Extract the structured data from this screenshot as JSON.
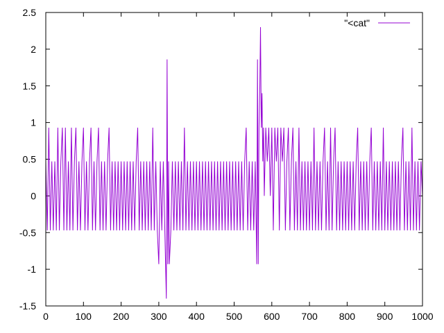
{
  "chart_data": {
    "type": "line",
    "title": "",
    "xlabel": "",
    "ylabel": "",
    "xlim": [
      0,
      1000
    ],
    "ylim": [
      -1.5,
      2.5
    ],
    "xticks": [
      "0",
      "100",
      "200",
      "300",
      "400",
      "500",
      "600",
      "700",
      "800",
      "900",
      "1000"
    ],
    "yticks": [
      "2.5",
      "2",
      "1.5",
      "1",
      "0.5",
      "0",
      "-0.5",
      "-1",
      "-1.5"
    ],
    "grid": false,
    "legend_position": "top-right",
    "series": [
      {
        "name": "\"<cat\"",
        "color": "#9400d3",
        "x": [
          0,
          4,
          8,
          12,
          16,
          20,
          24,
          28,
          32,
          36,
          40,
          44,
          48,
          52,
          56,
          60,
          64,
          68,
          72,
          76,
          80,
          84,
          88,
          92,
          96,
          100,
          104,
          108,
          112,
          116,
          120,
          124,
          128,
          132,
          136,
          140,
          144,
          148,
          152,
          156,
          160,
          164,
          168,
          172,
          176,
          180,
          184,
          188,
          192,
          196,
          200,
          204,
          208,
          212,
          216,
          220,
          224,
          228,
          232,
          236,
          240,
          244,
          248,
          252,
          256,
          260,
          264,
          268,
          272,
          276,
          280,
          284,
          288,
          292,
          296,
          300,
          304,
          308,
          312,
          316,
          320,
          322,
          324,
          326,
          328,
          332,
          336,
          340,
          344,
          348,
          352,
          356,
          360,
          364,
          368,
          372,
          376,
          380,
          384,
          388,
          392,
          396,
          400,
          404,
          408,
          412,
          416,
          420,
          424,
          428,
          432,
          436,
          440,
          444,
          448,
          452,
          456,
          460,
          464,
          468,
          472,
          476,
          480,
          484,
          488,
          492,
          496,
          500,
          504,
          508,
          512,
          516,
          520,
          524,
          528,
          532,
          536,
          540,
          544,
          548,
          552,
          556,
          560,
          562,
          564,
          566,
          568,
          570,
          572,
          574,
          576,
          578,
          580,
          584,
          588,
          592,
          596,
          600,
          604,
          608,
          612,
          616,
          620,
          624,
          628,
          632,
          636,
          640,
          644,
          648,
          652,
          656,
          660,
          664,
          668,
          672,
          676,
          680,
          684,
          688,
          692,
          696,
          700,
          704,
          708,
          712,
          716,
          720,
          724,
          728,
          732,
          736,
          740,
          744,
          748,
          752,
          756,
          760,
          764,
          768,
          772,
          776,
          780,
          784,
          788,
          792,
          796,
          800,
          804,
          808,
          812,
          816,
          820,
          824,
          828,
          832,
          836,
          840,
          844,
          848,
          852,
          856,
          860,
          864,
          868,
          872,
          876,
          880,
          884,
          888,
          892,
          896,
          900,
          904,
          908,
          912,
          916,
          920,
          924,
          928,
          932,
          936,
          940,
          944,
          948,
          952,
          956,
          960,
          964,
          968,
          972,
          976,
          980,
          984,
          988,
          992,
          996,
          1000
        ],
        "y": [
          0.47,
          -0.47,
          0.93,
          -0.47,
          0.47,
          -0.47,
          0.47,
          -0.47,
          0.93,
          -0.47,
          0.47,
          0.93,
          -0.47,
          0.93,
          -0.47,
          0.47,
          -0.47,
          0.93,
          -0.47,
          0.47,
          0.93,
          -0.47,
          0.47,
          -0.47,
          0.47,
          0.93,
          -0.47,
          0.47,
          -0.47,
          0.47,
          0.93,
          -0.47,
          0.47,
          -0.47,
          0.47,
          0.93,
          -0.47,
          0.47,
          -0.47,
          0.47,
          -0.47,
          0.47,
          0.93,
          -0.47,
          0.47,
          -0.47,
          0.47,
          -0.47,
          0.47,
          -0.47,
          0.47,
          -0.47,
          0.47,
          -0.47,
          0.47,
          -0.47,
          0.47,
          -0.47,
          0.47,
          -0.47,
          0.47,
          0.93,
          -0.47,
          0.47,
          -0.47,
          0.47,
          -0.47,
          0.47,
          -0.47,
          0.47,
          -0.47,
          0.93,
          -0.47,
          0.47,
          -0.47,
          -0.93,
          0.47,
          -0.47,
          0.47,
          -0.47,
          -1.4,
          1.86,
          -0.93,
          0.47,
          -0.93,
          -0.47,
          0.47,
          -0.47,
          0.47,
          -0.47,
          0.47,
          -0.47,
          0.47,
          -0.47,
          0.93,
          -0.47,
          0.47,
          -0.47,
          0.47,
          -0.47,
          0.47,
          -0.47,
          0.47,
          -0.47,
          0.47,
          -0.47,
          0.47,
          -0.47,
          0.47,
          -0.47,
          0.47,
          -0.47,
          0.47,
          -0.47,
          0.47,
          -0.47,
          0.47,
          -0.47,
          0.47,
          -0.47,
          0.47,
          -0.47,
          0.47,
          -0.47,
          0.47,
          -0.47,
          0.47,
          -0.47,
          0.47,
          -0.47,
          0.47,
          -0.47,
          0.47,
          -0.47,
          0.47,
          0.93,
          -0.47,
          0.47,
          -0.47,
          0.47,
          -0.47,
          0.47,
          -0.93,
          1.86,
          -0.93,
          0.93,
          1.4,
          2.3,
          0.93,
          1.4,
          0.47,
          0.93,
          0.0,
          0.93,
          0.47,
          0.93,
          0.0,
          0.93,
          -0.47,
          0.93,
          0.47,
          0.93,
          -0.47,
          0.93,
          0.47,
          0.93,
          -0.47,
          0.47,
          0.93,
          -0.47,
          0.47,
          0.93,
          -0.47,
          0.47,
          -0.47,
          0.93,
          -0.47,
          0.47,
          -0.47,
          0.47,
          -0.47,
          0.47,
          -0.47,
          0.47,
          -0.47,
          0.93,
          -0.47,
          0.47,
          -0.47,
          0.47,
          -0.47,
          0.47,
          0.93,
          -0.47,
          0.47,
          -0.47,
          0.93,
          -0.47,
          0.47,
          0.93,
          -0.47,
          0.47,
          -0.47,
          0.47,
          -0.47,
          0.47,
          -0.47,
          0.47,
          -0.47,
          0.47,
          -0.47,
          0.47,
          -0.47,
          0.47,
          0.93,
          -0.47,
          0.47,
          -0.47,
          0.47,
          -0.47,
          0.47,
          -0.47,
          0.47,
          0.93,
          -0.47,
          0.47,
          -0.47,
          0.47,
          -0.47,
          0.47,
          -0.47,
          0.93,
          -0.47,
          0.47,
          -0.47,
          0.47,
          -0.47,
          0.47,
          -0.47,
          0.47,
          -0.47,
          0.47,
          -0.47,
          0.47,
          0.93,
          -0.47,
          0.47,
          -0.47,
          0.47,
          -0.47,
          0.93,
          -0.47,
          0.47,
          -0.47,
          0.47,
          -0.47,
          0.47,
          0.0
        ]
      }
    ]
  }
}
